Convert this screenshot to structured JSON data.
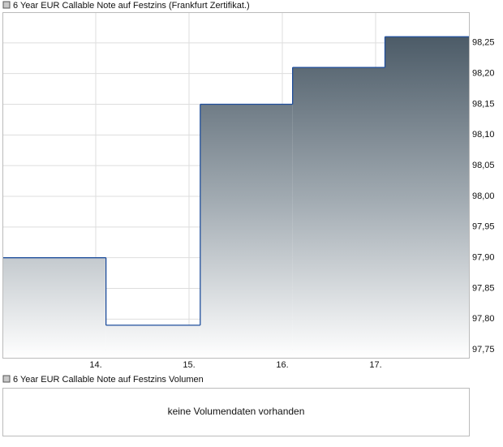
{
  "chart_data": {
    "type": "step",
    "title": "6 Year EUR Callable Note auf Festzins (Frankfurt Zertifikat.)",
    "x": [
      13.0,
      14.11,
      15.12,
      16.11,
      17.1
    ],
    "values": [
      97.9,
      97.79,
      98.15,
      98.21,
      98.26
    ],
    "color": "#1f4e9c",
    "xlim": [
      13.0,
      18.0
    ],
    "xticks": [
      {
        "value": 14,
        "label": "14."
      },
      {
        "value": 15,
        "label": "15."
      },
      {
        "value": 16,
        "label": "16."
      },
      {
        "value": 17,
        "label": "17."
      }
    ],
    "ylim": [
      97.737,
      98.3
    ],
    "yticks": [
      {
        "value": 97.75,
        "label": "97,75"
      },
      {
        "value": 97.8,
        "label": "97,80"
      },
      {
        "value": 97.85,
        "label": "97,85"
      },
      {
        "value": 97.9,
        "label": "97,90"
      },
      {
        "value": 97.95,
        "label": "97,95"
      },
      {
        "value": 98.0,
        "label": "98,00"
      },
      {
        "value": 98.05,
        "label": "98,05"
      },
      {
        "value": 98.1,
        "label": "98,10"
      },
      {
        "value": 98.15,
        "label": "98,15"
      },
      {
        "value": 98.2,
        "label": "98,20"
      },
      {
        "value": 98.25,
        "label": "98,25"
      }
    ],
    "grid": true
  },
  "volume_panel": {
    "title": "6 Year EUR Callable Note auf Festzins Volumen",
    "message": "keine Volumendaten vorhanden"
  }
}
